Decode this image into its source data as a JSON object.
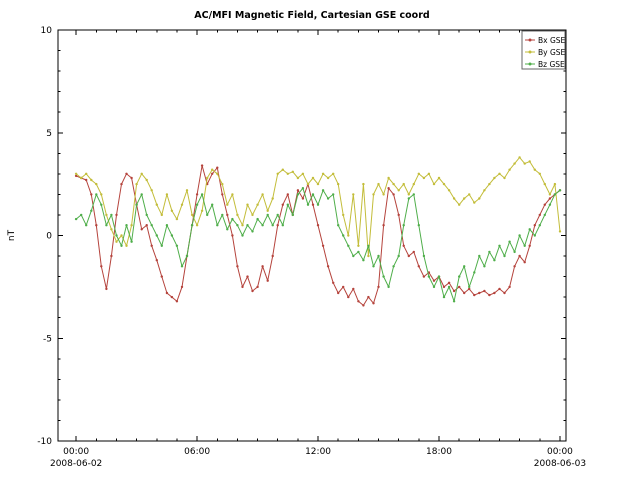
{
  "chart_data": {
    "type": "line",
    "title": "AC/MFI Magnetic Field, Cartesian GSE coord",
    "ylabel": "nT",
    "ylim": [
      -10,
      10
    ],
    "xlim_hours": [
      -0.9,
      24.3
    ],
    "grid": false,
    "marker": "dot",
    "x_axis": {
      "start_date": "2008-06-02",
      "end_date": "2008-06-03",
      "minor_tick_hours": 1,
      "ticks": [
        {
          "hours": 0,
          "label": "00:00"
        },
        {
          "hours": 6,
          "label": "06:00"
        },
        {
          "hours": 12,
          "label": "12:00"
        },
        {
          "hours": 18,
          "label": "18:00"
        },
        {
          "hours": 24,
          "label": "00:00"
        }
      ]
    },
    "y_axis": {
      "minor_tick": 1,
      "ticks": [
        {
          "value": -10,
          "label": "-10"
        },
        {
          "value": -5,
          "label": "-5"
        },
        {
          "value": 0,
          "label": "0"
        },
        {
          "value": 5,
          "label": "5"
        },
        {
          "value": 10,
          "label": "10"
        }
      ]
    },
    "legend": {
      "position": "top-right",
      "entries": [
        "Bx GSE",
        "By GSE",
        "Bz GSE"
      ]
    },
    "x": {
      "start_hours": 0,
      "step_hours": 0.25,
      "count": 97,
      "unit": "hours since 2008-06-02 00:00"
    },
    "series": [
      {
        "name": "Bx GSE",
        "color": "#b5433c",
        "values": [
          2.9,
          2.8,
          2.7,
          2.0,
          0.5,
          -1.5,
          -2.6,
          -1.0,
          1.0,
          2.5,
          3.0,
          2.8,
          1.5,
          0.3,
          0.5,
          -0.5,
          -1.2,
          -2.0,
          -2.8,
          -3.0,
          -3.2,
          -2.5,
          -1.0,
          0.5,
          2.0,
          3.4,
          2.5,
          3.0,
          3.3,
          2.0,
          1.0,
          0.0,
          -1.5,
          -2.5,
          -2.0,
          -2.7,
          -2.5,
          -1.5,
          -2.2,
          -1.0,
          0.5,
          1.5,
          2.0,
          1.0,
          2.2,
          1.8,
          2.5,
          1.5,
          0.5,
          -0.5,
          -1.5,
          -2.3,
          -2.8,
          -2.5,
          -3.0,
          -2.6,
          -3.2,
          -3.4,
          -3.0,
          -3.3,
          -2.5,
          0.5,
          2.3,
          2.0,
          1.0,
          -0.5,
          -1.0,
          -0.8,
          -1.5,
          -2.0,
          -1.8,
          -2.2,
          -2.0,
          -2.5,
          -2.3,
          -2.7,
          -2.5,
          -2.8,
          -2.6,
          -2.9,
          -2.8,
          -2.7,
          -2.9,
          -2.8,
          -2.6,
          -2.8,
          -2.5,
          -1.5,
          -1.0,
          -1.3,
          -0.5,
          0.5,
          1.0,
          1.5,
          1.8,
          2.0,
          2.2
        ]
      },
      {
        "name": "By GSE",
        "color": "#c3bd3a",
        "values": [
          3.0,
          2.8,
          3.0,
          2.7,
          2.5,
          2.0,
          1.0,
          0.3,
          -0.3,
          0.0,
          -0.5,
          0.5,
          2.5,
          3.0,
          2.7,
          2.2,
          1.5,
          1.0,
          2.0,
          1.2,
          0.8,
          1.5,
          2.2,
          1.0,
          0.5,
          1.2,
          2.8,
          3.2,
          3.0,
          2.5,
          1.5,
          2.0,
          1.0,
          0.5,
          1.5,
          1.0,
          1.5,
          2.0,
          1.2,
          1.8,
          3.0,
          3.2,
          3.0,
          3.1,
          2.8,
          3.0,
          2.5,
          2.8,
          2.5,
          3.0,
          2.8,
          3.0,
          2.5,
          1.0,
          0.0,
          2.0,
          -0.5,
          2.5,
          -1.0,
          2.0,
          2.5,
          2.0,
          2.8,
          2.5,
          2.2,
          2.5,
          2.0,
          2.5,
          3.0,
          2.8,
          3.0,
          2.5,
          2.8,
          2.5,
          2.2,
          1.8,
          1.5,
          1.8,
          2.0,
          1.6,
          1.8,
          2.2,
          2.5,
          2.8,
          3.0,
          2.8,
          3.2,
          3.5,
          3.8,
          3.5,
          3.6,
          3.2,
          3.0,
          2.5,
          2.0,
          2.5,
          0.2
        ]
      },
      {
        "name": "Bz GSE",
        "color": "#4fae4a",
        "values": [
          0.8,
          1.0,
          0.5,
          1.2,
          2.0,
          1.5,
          0.5,
          1.0,
          0.0,
          -0.5,
          0.5,
          -0.3,
          1.5,
          2.0,
          1.0,
          0.5,
          0.0,
          -0.5,
          0.5,
          0.0,
          -0.5,
          -1.5,
          -1.0,
          0.5,
          1.5,
          2.0,
          1.0,
          1.5,
          0.5,
          1.0,
          0.3,
          0.8,
          0.5,
          0.0,
          0.5,
          0.2,
          0.8,
          0.5,
          1.0,
          0.5,
          1.0,
          0.5,
          1.5,
          1.0,
          2.0,
          2.3,
          1.5,
          2.0,
          1.5,
          2.2,
          1.8,
          2.0,
          0.5,
          0.0,
          -0.5,
          -1.0,
          -0.8,
          -1.2,
          -0.5,
          -1.5,
          -1.0,
          -2.0,
          -2.5,
          -1.5,
          -1.0,
          0.5,
          1.8,
          2.0,
          0.5,
          -1.0,
          -2.0,
          -2.5,
          -2.0,
          -3.0,
          -2.5,
          -3.2,
          -2.0,
          -1.5,
          -2.5,
          -1.8,
          -1.0,
          -1.5,
          -0.8,
          -1.2,
          -0.5,
          -1.0,
          -0.3,
          -0.8,
          0.0,
          -0.5,
          0.3,
          0.0,
          0.5,
          1.0,
          1.5,
          2.0,
          2.2
        ]
      }
    ]
  }
}
